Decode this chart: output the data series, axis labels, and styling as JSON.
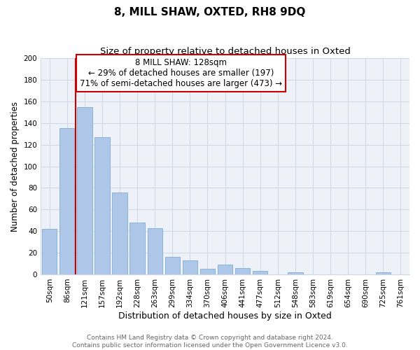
{
  "title": "8, MILL SHAW, OXTED, RH8 9DQ",
  "subtitle": "Size of property relative to detached houses in Oxted",
  "xlabel": "Distribution of detached houses by size in Oxted",
  "ylabel": "Number of detached properties",
  "bar_labels": [
    "50sqm",
    "86sqm",
    "121sqm",
    "157sqm",
    "192sqm",
    "228sqm",
    "263sqm",
    "299sqm",
    "334sqm",
    "370sqm",
    "406sqm",
    "441sqm",
    "477sqm",
    "512sqm",
    "548sqm",
    "583sqm",
    "619sqm",
    "654sqm",
    "690sqm",
    "725sqm",
    "761sqm"
  ],
  "bar_values": [
    42,
    135,
    155,
    127,
    76,
    48,
    43,
    16,
    13,
    5,
    9,
    6,
    3,
    0,
    2,
    0,
    0,
    0,
    0,
    2,
    0
  ],
  "bar_color": "#aec6e8",
  "bar_edge_color": "#7faed4",
  "vline_x_index": 2,
  "vline_color": "#cc0000",
  "annotation_text_line1": "8 MILL SHAW: 128sqm",
  "annotation_text_line2": "← 29% of detached houses are smaller (197)",
  "annotation_text_line3": "71% of semi-detached houses are larger (473) →",
  "box_edge_color": "#cc0000",
  "ylim": [
    0,
    200
  ],
  "yticks": [
    0,
    20,
    40,
    60,
    80,
    100,
    120,
    140,
    160,
    180,
    200
  ],
  "grid_color": "#d0d8e8",
  "background_color": "#ffffff",
  "plot_bg_color": "#eef2f8",
  "footer_line1": "Contains HM Land Registry data © Crown copyright and database right 2024.",
  "footer_line2": "Contains public sector information licensed under the Open Government Licence v3.0.",
  "title_fontsize": 11,
  "subtitle_fontsize": 9.5,
  "xlabel_fontsize": 9,
  "ylabel_fontsize": 8.5,
  "tick_fontsize": 7.5,
  "footer_fontsize": 6.5,
  "annotation_fontsize": 8.5
}
